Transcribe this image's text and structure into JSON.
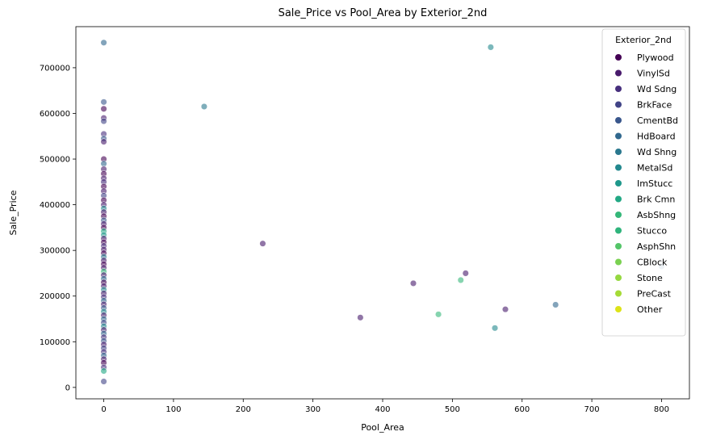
{
  "chart_data": {
    "type": "scatter",
    "title": "Sale_Price vs Pool_Area by Exterior_2nd",
    "xlabel": "Pool_Area",
    "ylabel": "Sale_Price",
    "xlim": [
      -40,
      840
    ],
    "ylim": [
      -25000,
      790000
    ],
    "xticks": [
      0,
      100,
      200,
      300,
      400,
      500,
      600,
      700,
      800
    ],
    "yticks": [
      0,
      100000,
      200000,
      300000,
      400000,
      500000,
      600000,
      700000
    ],
    "grid": false,
    "legend": {
      "title": "Exterior_2nd",
      "placement": "top-right",
      "entries": [
        {
          "name": "Plywood",
          "color": "#440154"
        },
        {
          "name": "VinylSd",
          "color": "#481a6c"
        },
        {
          "name": "Wd Sdng",
          "color": "#472f7d"
        },
        {
          "name": "BrkFace",
          "color": "#414487"
        },
        {
          "name": "CmentBd",
          "color": "#39568c"
        },
        {
          "name": "HdBoard",
          "color": "#31688e"
        },
        {
          "name": "Wd Shng",
          "color": "#2a788e"
        },
        {
          "name": "MetalSd",
          "color": "#23888e"
        },
        {
          "name": "ImStucc",
          "color": "#1f988b"
        },
        {
          "name": "Brk Cmn",
          "color": "#22a884"
        },
        {
          "name": "AsbShng",
          "color": "#35b779"
        },
        {
          "name": "Stucco",
          "color": "#2fb47c"
        },
        {
          "name": "AsphShn",
          "color": "#54c568"
        },
        {
          "name": "CBlock",
          "color": "#7ad151"
        },
        {
          "name": "Stone",
          "color": "#95d840"
        },
        {
          "name": "PreCast",
          "color": "#a5db36"
        },
        {
          "name": "Other",
          "color": "#dde318"
        }
      ]
    },
    "series": [
      {
        "x": 0,
        "y": 755000,
        "color": "#31688e"
      },
      {
        "x": 0,
        "y": 625000,
        "color": "#39568c"
      },
      {
        "x": 0,
        "y": 610000,
        "color": "#440154"
      },
      {
        "x": 0,
        "y": 590000,
        "color": "#481a6c"
      },
      {
        "x": 0,
        "y": 583000,
        "color": "#414487"
      },
      {
        "x": 0,
        "y": 555000,
        "color": "#472f7d"
      },
      {
        "x": 0,
        "y": 545000,
        "color": "#39568c"
      },
      {
        "x": 0,
        "y": 538000,
        "color": "#481a6c"
      },
      {
        "x": 0,
        "y": 500000,
        "color": "#440154"
      },
      {
        "x": 0,
        "y": 490000,
        "color": "#31688e"
      },
      {
        "x": 0,
        "y": 478000,
        "color": "#481a6c"
      },
      {
        "x": 0,
        "y": 468000,
        "color": "#440154"
      },
      {
        "x": 0,
        "y": 458000,
        "color": "#481a6c"
      },
      {
        "x": 0,
        "y": 450000,
        "color": "#472f7d"
      },
      {
        "x": 0,
        "y": 440000,
        "color": "#440154"
      },
      {
        "x": 0,
        "y": 430000,
        "color": "#481a6c"
      },
      {
        "x": 0,
        "y": 420000,
        "color": "#414487"
      },
      {
        "x": 0,
        "y": 410000,
        "color": "#440154"
      },
      {
        "x": 0,
        "y": 400000,
        "color": "#481a6c"
      },
      {
        "x": 0,
        "y": 392000,
        "color": "#23888e"
      },
      {
        "x": 0,
        "y": 384000,
        "color": "#481a6c"
      },
      {
        "x": 0,
        "y": 375000,
        "color": "#440154"
      },
      {
        "x": 0,
        "y": 366000,
        "color": "#39568c"
      },
      {
        "x": 0,
        "y": 358000,
        "color": "#481a6c"
      },
      {
        "x": 0,
        "y": 350000,
        "color": "#440154"
      },
      {
        "x": 0,
        "y": 342000,
        "color": "#22a884"
      },
      {
        "x": 0,
        "y": 334000,
        "color": "#1f988b"
      },
      {
        "x": 0,
        "y": 326000,
        "color": "#481a6c"
      },
      {
        "x": 0,
        "y": 318000,
        "color": "#440154"
      },
      {
        "x": 0,
        "y": 310000,
        "color": "#472f7d"
      },
      {
        "x": 0,
        "y": 302000,
        "color": "#481a6c"
      },
      {
        "x": 0,
        "y": 294000,
        "color": "#440154"
      },
      {
        "x": 0,
        "y": 286000,
        "color": "#2a788e"
      },
      {
        "x": 0,
        "y": 278000,
        "color": "#481a6c"
      },
      {
        "x": 0,
        "y": 270000,
        "color": "#440154"
      },
      {
        "x": 0,
        "y": 262000,
        "color": "#481a6c"
      },
      {
        "x": 0,
        "y": 254000,
        "color": "#35b779"
      },
      {
        "x": 0,
        "y": 246000,
        "color": "#481a6c"
      },
      {
        "x": 0,
        "y": 238000,
        "color": "#31688e"
      },
      {
        "x": 0,
        "y": 230000,
        "color": "#440154"
      },
      {
        "x": 0,
        "y": 222000,
        "color": "#481a6c"
      },
      {
        "x": 0,
        "y": 214000,
        "color": "#23888e"
      },
      {
        "x": 0,
        "y": 206000,
        "color": "#481a6c"
      },
      {
        "x": 0,
        "y": 198000,
        "color": "#472f7d"
      },
      {
        "x": 0,
        "y": 190000,
        "color": "#31688e"
      },
      {
        "x": 0,
        "y": 182000,
        "color": "#481a6c"
      },
      {
        "x": 0,
        "y": 174000,
        "color": "#39568c"
      },
      {
        "x": 0,
        "y": 166000,
        "color": "#23888e"
      },
      {
        "x": 0,
        "y": 158000,
        "color": "#481a6c"
      },
      {
        "x": 0,
        "y": 150000,
        "color": "#31688e"
      },
      {
        "x": 0,
        "y": 142000,
        "color": "#414487"
      },
      {
        "x": 0,
        "y": 134000,
        "color": "#23888e"
      },
      {
        "x": 0,
        "y": 126000,
        "color": "#481a6c"
      },
      {
        "x": 0,
        "y": 118000,
        "color": "#31688e"
      },
      {
        "x": 0,
        "y": 110000,
        "color": "#472f7d"
      },
      {
        "x": 0,
        "y": 102000,
        "color": "#39568c"
      },
      {
        "x": 0,
        "y": 94000,
        "color": "#481a6c"
      },
      {
        "x": 0,
        "y": 86000,
        "color": "#414487"
      },
      {
        "x": 0,
        "y": 78000,
        "color": "#472f7d"
      },
      {
        "x": 0,
        "y": 70000,
        "color": "#31688e"
      },
      {
        "x": 0,
        "y": 62000,
        "color": "#481a6c"
      },
      {
        "x": 0,
        "y": 54000,
        "color": "#440154"
      },
      {
        "x": 0,
        "y": 44000,
        "color": "#472f7d"
      },
      {
        "x": 0,
        "y": 36000,
        "color": "#22a884"
      },
      {
        "x": 0,
        "y": 13000,
        "color": "#414487"
      },
      {
        "x": 144,
        "y": 615000,
        "color": "#2a788e"
      },
      {
        "x": 228,
        "y": 315000,
        "color": "#481a6c"
      },
      {
        "x": 368,
        "y": 153000,
        "color": "#481a6c"
      },
      {
        "x": 444,
        "y": 228000,
        "color": "#481a6c"
      },
      {
        "x": 480,
        "y": 160000,
        "color": "#35b779"
      },
      {
        "x": 512,
        "y": 235000,
        "color": "#35b779"
      },
      {
        "x": 519,
        "y": 250000,
        "color": "#481a6c"
      },
      {
        "x": 555,
        "y": 745000,
        "color": "#23888e"
      },
      {
        "x": 561,
        "y": 130000,
        "color": "#23888e"
      },
      {
        "x": 576,
        "y": 171000,
        "color": "#481a6c"
      },
      {
        "x": 648,
        "y": 181000,
        "color": "#31688e"
      },
      {
        "x": 738,
        "y": 275000,
        "color": "#39568c"
      },
      {
        "x": 800,
        "y": 265000,
        "color": "#31688e"
      }
    ]
  }
}
